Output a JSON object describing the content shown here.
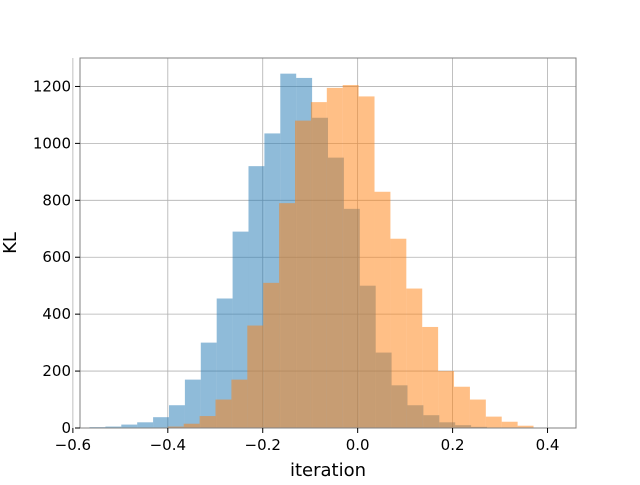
{
  "chart_data": {
    "type": "bar",
    "subtype": "overlapping-histogram",
    "xlabel": "iteration",
    "ylabel": "KL",
    "xlim": [
      -0.585,
      0.46
    ],
    "ylim": [
      0,
      1300
    ],
    "xticks": [
      -0.6,
      -0.4,
      -0.2,
      0.0,
      0.2,
      0.4
    ],
    "xtick_labels": [
      "−0.6",
      "−0.4",
      "−0.2",
      "0.0",
      "0.2",
      "0.4"
    ],
    "yticks": [
      0,
      200,
      400,
      600,
      800,
      1000,
      1200
    ],
    "ytick_labels": [
      "0",
      "200",
      "400",
      "600",
      "800",
      "1000",
      "1200"
    ],
    "grid": true,
    "legend": false,
    "series": [
      {
        "color": "#1f77b4",
        "alpha": 0.5,
        "bin_edges": [
          -0.565,
          -0.5315,
          -0.498,
          -0.4645,
          -0.431,
          -0.3975,
          -0.364,
          -0.3305,
          -0.297,
          -0.2635,
          -0.23,
          -0.1965,
          -0.163,
          -0.1295,
          -0.096,
          -0.0625,
          -0.029,
          0.0045,
          0.038,
          0.0715,
          0.105,
          0.1385,
          0.172,
          0.2055,
          0.239,
          0.2725
        ],
        "counts": [
          3,
          5,
          12,
          20,
          38,
          80,
          170,
          300,
          455,
          690,
          920,
          1035,
          1245,
          1230,
          1090,
          950,
          770,
          500,
          265,
          150,
          80,
          45,
          20,
          10,
          4
        ]
      },
      {
        "color": "#ff7f0e",
        "alpha": 0.5,
        "bin_edges": [
          -0.4,
          -0.3665,
          -0.333,
          -0.2995,
          -0.266,
          -0.2325,
          -0.199,
          -0.1655,
          -0.132,
          -0.0985,
          -0.065,
          -0.0315,
          0.002,
          0.0355,
          0.069,
          0.1025,
          0.136,
          0.1695,
          0.203,
          0.2365,
          0.27,
          0.3035,
          0.337,
          0.3705
        ],
        "counts": [
          5,
          15,
          42,
          100,
          170,
          360,
          510,
          790,
          1080,
          1145,
          1195,
          1205,
          1165,
          830,
          665,
          490,
          355,
          200,
          145,
          100,
          40,
          22,
          8
        ]
      }
    ]
  }
}
